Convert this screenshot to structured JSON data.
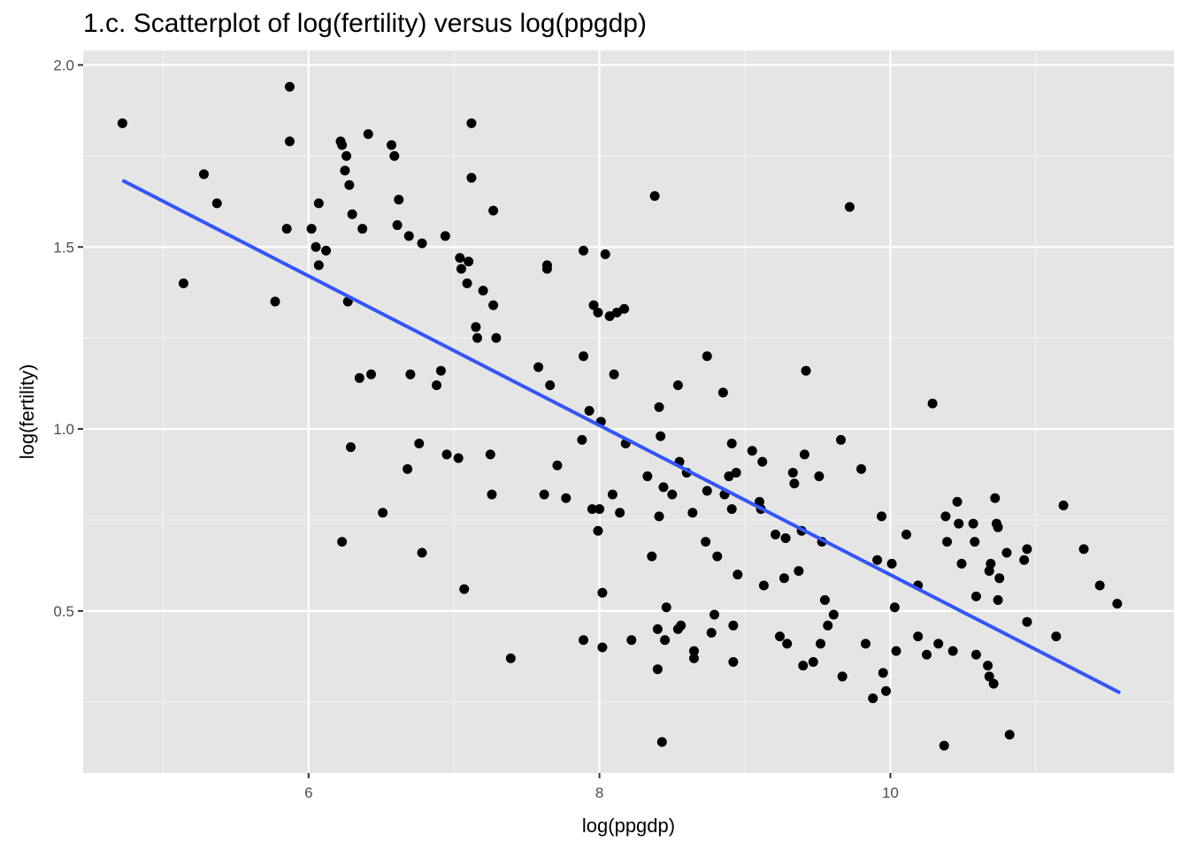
{
  "chart_data": {
    "type": "scatter",
    "title": "1.c. Scatterplot of log(fertility) versus log(ppgdp)",
    "xlabel": "log(ppgdp)",
    "ylabel": "log(fertility)",
    "xlim": [
      4.45,
      11.95
    ],
    "ylim": [
      0.055,
      2.04
    ],
    "x_ticks": [
      6,
      8,
      10
    ],
    "x_minor": [
      5,
      7,
      9,
      11
    ],
    "y_ticks": [
      0.5,
      1.0,
      1.5,
      2.0
    ],
    "y_minor": [
      0.25,
      0.75,
      1.25,
      1.75
    ],
    "x_tick_labels": [
      "6",
      "8",
      "10"
    ],
    "y_tick_labels": [
      "0.5",
      "1.0",
      "1.5",
      "2.0"
    ],
    "grid": true,
    "point_color": "#000000",
    "line_color": "#3355ff",
    "panel_background": "#e5e5e5",
    "regression_line": [
      {
        "x": 4.72,
        "y": 1.683
      },
      {
        "x": 11.58,
        "y": 0.275
      }
    ],
    "points": [
      [
        4.72,
        1.84
      ],
      [
        5.14,
        1.4
      ],
      [
        5.28,
        1.7
      ],
      [
        5.37,
        1.62
      ],
      [
        5.77,
        1.35
      ],
      [
        5.85,
        1.55
      ],
      [
        5.87,
        1.79
      ],
      [
        5.87,
        1.94
      ],
      [
        6.02,
        1.55
      ],
      [
        6.05,
        1.5
      ],
      [
        6.07,
        1.45
      ],
      [
        6.07,
        1.62
      ],
      [
        6.12,
        1.49
      ],
      [
        6.22,
        1.79
      ],
      [
        6.23,
        1.78
      ],
      [
        6.23,
        0.69
      ],
      [
        6.25,
        1.71
      ],
      [
        6.26,
        1.75
      ],
      [
        6.27,
        1.35
      ],
      [
        6.28,
        1.67
      ],
      [
        6.29,
        0.95
      ],
      [
        6.3,
        1.59
      ],
      [
        6.35,
        1.14
      ],
      [
        6.37,
        1.55
      ],
      [
        6.41,
        1.81
      ],
      [
        6.43,
        1.15
      ],
      [
        6.51,
        0.77
      ],
      [
        6.57,
        1.78
      ],
      [
        6.59,
        1.75
      ],
      [
        6.61,
        1.56
      ],
      [
        6.62,
        1.63
      ],
      [
        6.68,
        0.89
      ],
      [
        6.69,
        1.53
      ],
      [
        6.7,
        1.15
      ],
      [
        6.76,
        0.96
      ],
      [
        6.78,
        1.51
      ],
      [
        6.78,
        0.66
      ],
      [
        6.88,
        1.12
      ],
      [
        6.91,
        1.16
      ],
      [
        6.94,
        1.53
      ],
      [
        6.95,
        0.93
      ],
      [
        7.03,
        0.92
      ],
      [
        7.04,
        1.47
      ],
      [
        7.05,
        1.44
      ],
      [
        7.07,
        0.56
      ],
      [
        7.09,
        1.4
      ],
      [
        7.1,
        1.46
      ],
      [
        7.12,
        1.84
      ],
      [
        7.12,
        1.69
      ],
      [
        7.15,
        1.28
      ],
      [
        7.16,
        1.25
      ],
      [
        7.2,
        1.38
      ],
      [
        7.25,
        0.93
      ],
      [
        7.26,
        0.82
      ],
      [
        7.27,
        1.34
      ],
      [
        7.27,
        1.6
      ],
      [
        7.29,
        1.25
      ],
      [
        7.39,
        0.37
      ],
      [
        7.58,
        1.17
      ],
      [
        7.62,
        0.82
      ],
      [
        7.64,
        1.45
      ],
      [
        7.64,
        1.44
      ],
      [
        7.66,
        1.12
      ],
      [
        7.71,
        0.9
      ],
      [
        7.77,
        0.81
      ],
      [
        7.88,
        0.97
      ],
      [
        7.89,
        1.49
      ],
      [
        7.89,
        0.42
      ],
      [
        7.89,
        1.2
      ],
      [
        7.93,
        1.05
      ],
      [
        7.95,
        0.78
      ],
      [
        7.96,
        1.34
      ],
      [
        7.99,
        1.32
      ],
      [
        7.99,
        0.72
      ],
      [
        8.0,
        0.78
      ],
      [
        8.01,
        1.02
      ],
      [
        8.02,
        0.4
      ],
      [
        8.02,
        0.55
      ],
      [
        8.04,
        1.48
      ],
      [
        8.07,
        1.31
      ],
      [
        8.09,
        0.82
      ],
      [
        8.1,
        1.15
      ],
      [
        8.12,
        1.32
      ],
      [
        8.14,
        0.77
      ],
      [
        8.17,
        1.33
      ],
      [
        8.18,
        0.96
      ],
      [
        8.22,
        0.42
      ],
      [
        8.33,
        0.87
      ],
      [
        8.36,
        0.65
      ],
      [
        8.38,
        1.64
      ],
      [
        8.4,
        0.45
      ],
      [
        8.4,
        0.34
      ],
      [
        8.41,
        1.06
      ],
      [
        8.41,
        0.76
      ],
      [
        8.42,
        0.98
      ],
      [
        8.43,
        0.14
      ],
      [
        8.44,
        0.84
      ],
      [
        8.45,
        0.42
      ],
      [
        8.46,
        0.51
      ],
      [
        8.5,
        0.82
      ],
      [
        8.54,
        1.12
      ],
      [
        8.54,
        0.45
      ],
      [
        8.55,
        0.91
      ],
      [
        8.56,
        0.46
      ],
      [
        8.6,
        0.88
      ],
      [
        8.64,
        0.77
      ],
      [
        8.65,
        0.39
      ],
      [
        8.65,
        0.37
      ],
      [
        8.73,
        0.69
      ],
      [
        8.74,
        1.2
      ],
      [
        8.74,
        0.83
      ],
      [
        8.77,
        0.44
      ],
      [
        8.79,
        0.49
      ],
      [
        8.81,
        0.65
      ],
      [
        8.85,
        1.1
      ],
      [
        8.86,
        0.82
      ],
      [
        8.89,
        0.87
      ],
      [
        8.91,
        0.96
      ],
      [
        8.91,
        0.78
      ],
      [
        8.92,
        0.46
      ],
      [
        8.92,
        0.36
      ],
      [
        8.94,
        0.88
      ],
      [
        8.95,
        0.6
      ],
      [
        9.05,
        0.94
      ],
      [
        9.1,
        0.8
      ],
      [
        9.11,
        0.78
      ],
      [
        9.12,
        0.91
      ],
      [
        9.13,
        0.57
      ],
      [
        9.21,
        0.71
      ],
      [
        9.24,
        0.43
      ],
      [
        9.27,
        0.59
      ],
      [
        9.28,
        0.7
      ],
      [
        9.29,
        0.41
      ],
      [
        9.33,
        0.88
      ],
      [
        9.34,
        0.85
      ],
      [
        9.37,
        0.61
      ],
      [
        9.39,
        0.72
      ],
      [
        9.4,
        0.35
      ],
      [
        9.41,
        0.93
      ],
      [
        9.42,
        1.16
      ],
      [
        9.47,
        0.36
      ],
      [
        9.51,
        0.87
      ],
      [
        9.52,
        0.41
      ],
      [
        9.53,
        0.69
      ],
      [
        9.55,
        0.53
      ],
      [
        9.57,
        0.46
      ],
      [
        9.61,
        0.49
      ],
      [
        9.66,
        0.97
      ],
      [
        9.67,
        0.32
      ],
      [
        9.72,
        1.61
      ],
      [
        9.8,
        0.89
      ],
      [
        9.83,
        0.41
      ],
      [
        9.88,
        0.26
      ],
      [
        9.91,
        0.64
      ],
      [
        9.94,
        0.76
      ],
      [
        9.95,
        0.33
      ],
      [
        9.97,
        0.28
      ],
      [
        10.01,
        0.63
      ],
      [
        10.03,
        0.51
      ],
      [
        10.04,
        0.39
      ],
      [
        10.11,
        0.71
      ],
      [
        10.19,
        0.57
      ],
      [
        10.19,
        0.43
      ],
      [
        10.25,
        0.38
      ],
      [
        10.29,
        1.07
      ],
      [
        10.33,
        0.41
      ],
      [
        10.37,
        0.13
      ],
      [
        10.38,
        0.76
      ],
      [
        10.39,
        0.69
      ],
      [
        10.43,
        0.39
      ],
      [
        10.46,
        0.8
      ],
      [
        10.47,
        0.74
      ],
      [
        10.49,
        0.63
      ],
      [
        10.57,
        0.74
      ],
      [
        10.58,
        0.69
      ],
      [
        10.59,
        0.54
      ],
      [
        10.59,
        0.38
      ],
      [
        10.67,
        0.35
      ],
      [
        10.68,
        0.61
      ],
      [
        10.68,
        0.32
      ],
      [
        10.69,
        0.63
      ],
      [
        10.71,
        0.3
      ],
      [
        10.72,
        0.81
      ],
      [
        10.73,
        0.74
      ],
      [
        10.74,
        0.53
      ],
      [
        10.74,
        0.73
      ],
      [
        10.75,
        0.59
      ],
      [
        10.8,
        0.66
      ],
      [
        10.82,
        0.16
      ],
      [
        10.92,
        0.64
      ],
      [
        10.94,
        0.67
      ],
      [
        10.94,
        0.47
      ],
      [
        11.14,
        0.43
      ],
      [
        11.19,
        0.79
      ],
      [
        11.33,
        0.67
      ],
      [
        11.44,
        0.57
      ],
      [
        11.56,
        0.52
      ]
    ]
  }
}
